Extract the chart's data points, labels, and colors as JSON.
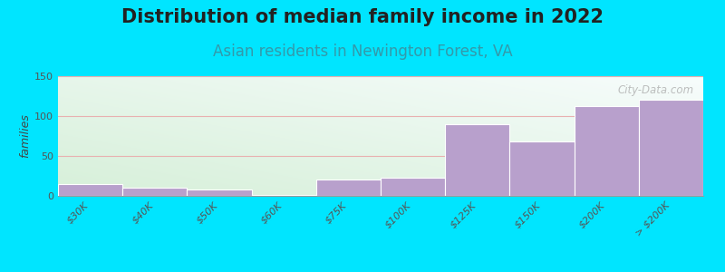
{
  "title": "Distribution of median family income in 2022",
  "subtitle": "Asian residents in Newington Forest, VA",
  "ylabel": "families",
  "categories": [
    "$30K",
    "$40K",
    "$50K",
    "$60K",
    "$75K",
    "$100K",
    "$125K",
    "$150K",
    "$200K",
    "> $200K"
  ],
  "values": [
    15,
    10,
    8,
    1,
    20,
    23,
    90,
    68,
    113,
    120
  ],
  "bar_color": "#b8a0cc",
  "background_color": "#00e5ff",
  "plot_bg_color_topleft": "#d8f0e0",
  "plot_bg_color_topright": "#f0f8f8",
  "plot_bg_color_bottomleft": "#c8e8d8",
  "plot_bg_color_bottomright": "#f5f5ff",
  "grid_color": "#e8b0b0",
  "title_fontsize": 15,
  "subtitle_fontsize": 12,
  "ylabel_fontsize": 9,
  "tick_fontsize": 8,
  "ylim": [
    0,
    150
  ],
  "yticks": [
    0,
    50,
    100,
    150
  ],
  "watermark": "City-Data.com"
}
